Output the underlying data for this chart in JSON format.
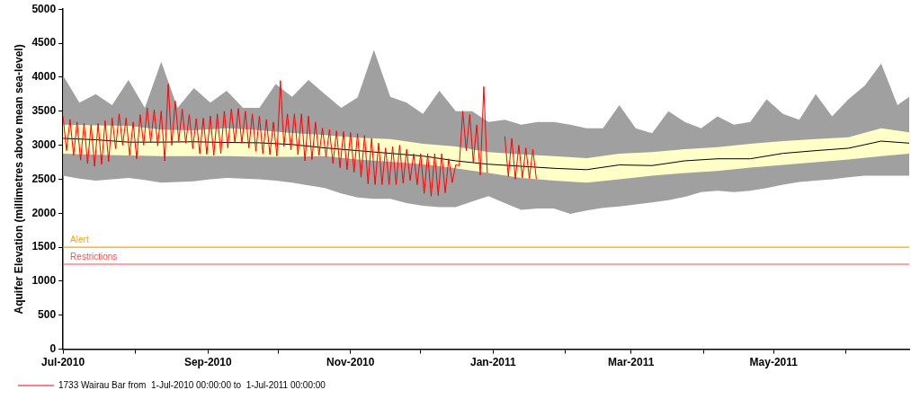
{
  "chart_data": {
    "type": "line",
    "ylabel": "Aquifer Elevation (millimetres above mean sea-level)",
    "xlim": [
      "2010-07-01",
      "2011-06-28"
    ],
    "xticks": [
      {
        "value": "2010-07-01",
        "label": "Jul-2010"
      },
      {
        "value": "2010-08-01",
        "label": null
      },
      {
        "value": "2010-09-01",
        "label": "Sep-2010"
      },
      {
        "value": "2010-10-01",
        "label": null
      },
      {
        "value": "2010-11-01",
        "label": "Nov-2010"
      },
      {
        "value": "2010-12-01",
        "label": null
      },
      {
        "value": "2011-01-01",
        "label": "Jan-2011"
      },
      {
        "value": "2011-02-01",
        "label": null
      },
      {
        "value": "2011-03-01",
        "label": "Mar-2011"
      },
      {
        "value": "2011-04-01",
        "label": null
      },
      {
        "value": "2011-05-01",
        "label": "May-2011"
      },
      {
        "value": "2011-06-01",
        "label": null
      }
    ],
    "ylim": [
      0,
      5000
    ],
    "yticks": [
      0,
      500,
      1000,
      1500,
      2000,
      2500,
      3000,
      3500,
      4000,
      4500,
      5000
    ],
    "grid": false,
    "legend": "bottom left",
    "ref_lines": [
      {
        "axis": "y",
        "value": 1500,
        "label": "Alert",
        "color": "#ffa500"
      },
      {
        "axis": "y",
        "value": 1250,
        "label": "Restrictions",
        "color": "#ff4d4d"
      }
    ],
    "series": [
      {
        "type": "area",
        "color": "#a0a0a0",
        "x": [
          "2010-07-01",
          "2010-07-08",
          "2010-07-15",
          "2010-07-22",
          "2010-07-29",
          "2010-08-05",
          "2010-08-12",
          "2010-08-19",
          "2010-08-26",
          "2010-09-02",
          "2010-09-09",
          "2010-09-16",
          "2010-09-23",
          "2010-09-30",
          "2010-10-07",
          "2010-10-14",
          "2010-10-21",
          "2010-10-28",
          "2010-11-04",
          "2010-11-11",
          "2010-11-18",
          "2010-11-25",
          "2010-12-02",
          "2010-12-09",
          "2010-12-16",
          "2010-12-23",
          "2010-12-30",
          "2011-01-06",
          "2011-01-13",
          "2011-01-20",
          "2011-01-27",
          "2011-02-03",
          "2011-02-10",
          "2011-02-17",
          "2011-02-24",
          "2011-03-03",
          "2011-03-10",
          "2011-03-17",
          "2011-03-24",
          "2011-03-31",
          "2011-04-07",
          "2011-04-14",
          "2011-04-21",
          "2011-04-28",
          "2011-05-05",
          "2011-05-12",
          "2011-05-19",
          "2011-05-26",
          "2011-06-02",
          "2011-06-09",
          "2011-06-16",
          "2011-06-23",
          "2011-06-28"
        ],
        "values": [
          null,
          null,
          null,
          null,
          null,
          null,
          null,
          null,
          null,
          null,
          null,
          null,
          null,
          null,
          null,
          null,
          null,
          null,
          null,
          null,
          null,
          null,
          null,
          null,
          null,
          null,
          null,
          null,
          null,
          null,
          null,
          null,
          null,
          null,
          null,
          null,
          null,
          null,
          null,
          null,
          null,
          null,
          null,
          null,
          null,
          null,
          null,
          null,
          null,
          null,
          null,
          null,
          null
        ],
        "upper": [
          4025,
          3625,
          3750,
          3590,
          3960,
          3550,
          4225,
          3550,
          3840,
          3625,
          3800,
          3550,
          3550,
          3900,
          3710,
          3960,
          3750,
          3550,
          3700,
          4400,
          3710,
          3625,
          3460,
          3800,
          3500,
          3500,
          3340,
          3375,
          3300,
          3340,
          3340,
          3300,
          3250,
          3250,
          3590,
          3250,
          3175,
          3500,
          3340,
          3250,
          3425,
          3300,
          3340,
          3675,
          3460,
          3375,
          3750,
          3425,
          3675,
          3875,
          4200,
          3590,
          3710
        ],
        "lower": [
          2550,
          2510,
          2480,
          2500,
          2520,
          2490,
          2450,
          2460,
          2470,
          2500,
          2520,
          2510,
          2500,
          2480,
          2450,
          2410,
          2370,
          2290,
          2230,
          2210,
          2210,
          2150,
          2110,
          2090,
          2090,
          2170,
          2250,
          2150,
          2050,
          2070,
          2070,
          1990,
          2040,
          2080,
          2100,
          2130,
          2160,
          2190,
          2240,
          2310,
          2330,
          2310,
          2330,
          2370,
          2420,
          2460,
          2480,
          2500,
          2530,
          2550,
          2550,
          2550,
          2550
        ]
      },
      {
        "type": "area",
        "color": "#ffffc8",
        "x": [
          "2010-07-01",
          "2010-07-15",
          "2010-07-29",
          "2010-08-12",
          "2010-08-26",
          "2010-09-09",
          "2010-09-23",
          "2010-10-07",
          "2010-10-21",
          "2010-11-04",
          "2010-11-18",
          "2010-12-02",
          "2010-12-16",
          "2010-12-30",
          "2011-01-13",
          "2011-01-27",
          "2011-02-10",
          "2011-02-24",
          "2011-03-10",
          "2011-03-24",
          "2011-04-07",
          "2011-04-21",
          "2011-05-05",
          "2011-05-19",
          "2011-06-02",
          "2011-06-16",
          "2011-06-28"
        ],
        "values": [
          null,
          null,
          null,
          null,
          null,
          null,
          null,
          null,
          null,
          null,
          null,
          null,
          null,
          null,
          null,
          null,
          null,
          null,
          null,
          null,
          null,
          null,
          null,
          null,
          null,
          null,
          null
        ],
        "upper": [
          3300,
          3290,
          3285,
          3230,
          3220,
          3250,
          3220,
          3180,
          3150,
          3110,
          3090,
          3020,
          2980,
          2900,
          2865,
          2840,
          2810,
          2875,
          2900,
          2940,
          2970,
          3020,
          3060,
          3090,
          3115,
          3250,
          3190
        ],
        "lower": [
          2875,
          2860,
          2850,
          2840,
          2840,
          2840,
          2830,
          2830,
          2840,
          2790,
          2755,
          2720,
          2660,
          2590,
          2520,
          2480,
          2450,
          2500,
          2550,
          2590,
          2620,
          2670,
          2710,
          2750,
          2790,
          2840,
          2875
        ]
      },
      {
        "type": "line",
        "color": "#000000",
        "x": [
          "2010-07-01",
          "2010-07-15",
          "2010-07-29",
          "2010-08-12",
          "2010-08-26",
          "2010-09-09",
          "2010-09-23",
          "2010-10-07",
          "2010-10-21",
          "2010-11-04",
          "2010-11-18",
          "2010-12-02",
          "2010-12-16",
          "2010-12-30",
          "2011-01-13",
          "2011-01-27",
          "2011-02-10",
          "2011-02-24",
          "2011-03-10",
          "2011-03-24",
          "2011-04-07",
          "2011-04-21",
          "2011-05-05",
          "2011-05-19",
          "2011-06-02",
          "2011-06-16",
          "2011-06-28"
        ],
        "values": [
          3100,
          3080,
          3045,
          3045,
          3050,
          3040,
          3035,
          3010,
          2960,
          2920,
          2880,
          2840,
          2770,
          2720,
          2690,
          2660,
          2640,
          2710,
          2700,
          2770,
          2800,
          2800,
          2880,
          2920,
          2955,
          3060,
          3030
        ]
      },
      {
        "type": "line",
        "name": "1733 Wairau Bar from  1-Jul-2010 00:00:00 to  1-Jul-2011 00:00:00",
        "color": "#ff0000",
        "x": [
          "2010-07-01",
          "2010-07-02T12:00",
          "2010-07-04",
          "2010-07-05T12:00",
          "2010-07-07",
          "2010-07-08T12:00",
          "2010-07-10",
          "2010-07-11T12:00",
          "2010-07-13",
          "2010-07-14T12:00",
          "2010-07-16",
          "2010-07-17T12:00",
          "2010-07-19",
          "2010-07-20T12:00",
          "2010-07-22",
          "2010-07-23T12:00",
          "2010-07-25",
          "2010-07-26T12:00",
          "2010-07-28",
          "2010-07-29T12:00",
          "2010-07-31",
          "2010-08-01T12:00",
          "2010-08-03",
          "2010-08-04T12:00",
          "2010-08-06",
          "2010-08-07T12:00",
          "2010-08-09",
          "2010-08-10T12:00",
          "2010-08-12",
          "2010-08-13T12:00",
          "2010-08-15",
          "2010-08-16T12:00",
          "2010-08-18",
          "2010-08-19T12:00",
          "2010-08-21",
          "2010-08-22T12:00",
          "2010-08-24",
          "2010-08-25T12:00",
          "2010-08-27",
          "2010-08-28T12:00",
          "2010-08-30",
          "2010-08-31T12:00",
          "2010-09-02",
          "2010-09-03T12:00",
          "2010-09-05",
          "2010-09-06T12:00",
          "2010-09-08",
          "2010-09-09T12:00",
          "2010-09-11",
          "2010-09-12T12:00",
          "2010-09-14",
          "2010-09-15T12:00",
          "2010-09-17",
          "2010-09-18T12:00",
          "2010-09-20",
          "2010-09-21T12:00",
          "2010-09-23",
          "2010-09-24T12:00",
          "2010-09-26",
          "2010-09-27T12:00",
          "2010-09-29",
          "2010-09-30T12:00",
          "2010-10-02",
          "2010-10-03T12:00",
          "2010-10-05",
          "2010-10-06T12:00",
          "2010-10-08",
          "2010-10-09T12:00",
          "2010-10-11",
          "2010-10-12T12:00",
          "2010-10-14",
          "2010-10-15T12:00",
          "2010-10-17",
          "2010-10-18T12:00",
          "2010-10-20",
          "2010-10-21T12:00",
          "2010-10-23",
          "2010-10-24T12:00",
          "2010-10-26",
          "2010-10-27T12:00",
          "2010-10-29",
          "2010-10-30T12:00",
          "2010-11-01",
          "2010-11-02T12:00",
          "2010-11-04",
          "2010-11-05T12:00",
          "2010-11-07",
          "2010-11-08T12:00",
          "2010-11-10",
          "2010-11-11T12:00",
          "2010-11-13",
          "2010-11-14T12:00",
          "2010-11-16",
          "2010-11-17T12:00",
          "2010-11-19",
          "2010-11-20T12:00",
          "2010-11-22",
          "2010-11-23T12:00",
          "2010-11-25",
          "2010-11-26T12:00",
          "2010-11-28",
          "2010-11-29T12:00",
          "2010-12-01",
          "2010-12-02T12:00",
          "2010-12-04",
          "2010-12-05T12:00",
          "2010-12-07",
          "2010-12-08T12:00",
          "2010-12-10",
          "2010-12-11T12:00",
          "2010-12-13",
          "2010-12-14T12:00",
          "2010-12-16",
          "2010-12-17T12:00",
          "2010-12-19",
          "2010-12-20T12:00",
          "2010-12-22",
          "2010-12-23T12:00",
          "2010-12-25",
          "2010-12-26T12:00",
          "2010-12-28",
          "2010-12-29T12:00",
          "2010-12-31",
          "2011-01-06",
          "2011-01-07T12:00",
          "2011-01-09",
          "2011-01-10T12:00",
          "2011-01-12",
          "2011-01-13T12:00",
          "2011-01-15",
          "2011-01-16T12:00",
          "2011-01-18",
          "2011-01-19T12:00"
        ],
        "values": [
          3425,
          2920,
          3380,
          2850,
          3340,
          2780,
          3320,
          2730,
          3300,
          2690,
          3320,
          2720,
          3360,
          2760,
          3400,
          2950,
          3460,
          3000,
          3400,
          2850,
          3340,
          2800,
          3450,
          3000,
          3550,
          3040,
          3520,
          2990,
          3500,
          2770,
          3900,
          3000,
          3650,
          3060,
          3530,
          3030,
          3450,
          2950,
          3390,
          2875,
          3400,
          2865,
          3430,
          2850,
          3460,
          2880,
          3500,
          2960,
          3530,
          3040,
          3540,
          3030,
          3500,
          2960,
          3460,
          2910,
          3425,
          2875,
          3380,
          2860,
          3340,
          2840,
          3950,
          2980,
          3460,
          2930,
          3460,
          2860,
          3460,
          2770,
          3430,
          2790,
          3340,
          2850,
          3250,
          2830,
          3230,
          2730,
          3210,
          2670,
          3200,
          2640,
          3185,
          2600,
          3170,
          2530,
          3145,
          2430,
          3100,
          2420,
          3030,
          2420,
          2960,
          2420,
          2980,
          2420,
          3000,
          2440,
          2940,
          2480,
          2875,
          2420,
          2875,
          2290,
          2875,
          2250,
          2875,
          2260,
          2875,
          2300,
          2800,
          2450,
          2710,
          2700,
          3500,
          2920,
          3450,
          2750,
          3300,
          2560,
          3860,
          2590,
          null,
          3130,
          2540,
          3100,
          2500,
          3000,
          2520,
          2960,
          2510,
          2940,
          2500
        ]
      }
    ]
  }
}
